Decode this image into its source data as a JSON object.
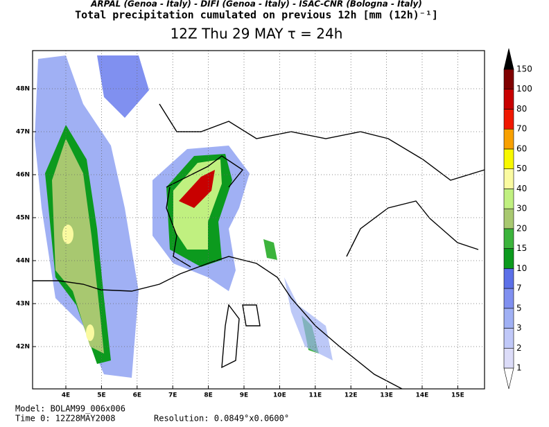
{
  "header": {
    "credits": "ARPAL (Genoa - Italy)  -  DIFI (Genoa - Italy)  -  ISAC-CNR (Bologna - Italy)",
    "subtitle": "Total precipitation cumulated on previous 12h [mm (12h)⁻¹]",
    "title": "12Z Thu 29 MAY   τ = 24h"
  },
  "map": {
    "lon_labels": [
      "4E",
      "5E",
      "6E",
      "7E",
      "8E",
      "9E",
      "10E",
      "11E",
      "12E",
      "13E",
      "14E",
      "15E"
    ],
    "lat_labels": [
      "48N",
      "47N",
      "46N",
      "45N",
      "44N",
      "43N",
      "42N"
    ]
  },
  "colorbar": {
    "levels": [
      1,
      2,
      3,
      5,
      7,
      10,
      15,
      20,
      30,
      40,
      50,
      60,
      70,
      80,
      100,
      150
    ],
    "colors": [
      "#ffffff",
      "#dcdcf8",
      "#c0c8f8",
      "#a0b0f4",
      "#8090f0",
      "#5c70e8",
      "#0c9a1e",
      "#3cb43c",
      "#a8c870",
      "#c0f080",
      "#fafaa0",
      "#f8f800",
      "#f8a000",
      "#f01800",
      "#c80000",
      "#800000",
      "#000000"
    ]
  },
  "footer": {
    "model": "Model: BOLAM99_006x006",
    "time": "Time 0: 12Z28MAY2008",
    "resolution": "Resolution: 0.0849°x0.0600°"
  }
}
